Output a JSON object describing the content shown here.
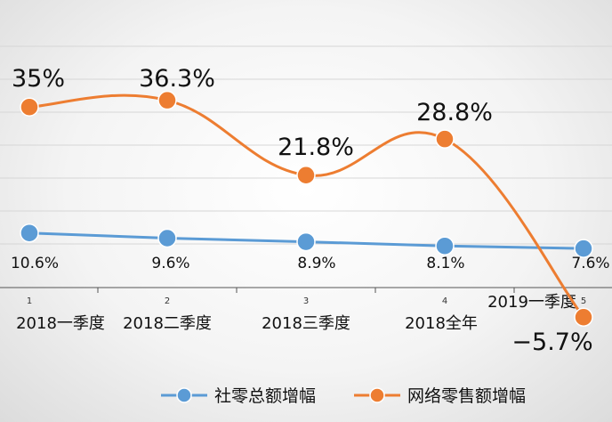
{
  "chart_data": {
    "type": "line",
    "x_ticks": [
      "1",
      "2",
      "3",
      "4",
      "5"
    ],
    "categories": [
      "2018一季度",
      "2018二季度",
      "2018三季度",
      "2018全年",
      "2019一季度"
    ],
    "series": [
      {
        "name": "社零总额增幅",
        "color": "#5b9bd5",
        "values": [
          10.6,
          9.6,
          8.9,
          8.1,
          7.6
        ],
        "labels": [
          "10.6%",
          "9.6%",
          "8.9%",
          "8.1%",
          "7.6%"
        ]
      },
      {
        "name": "网络零售额增幅",
        "color": "#ed7d31",
        "values": [
          35,
          36.3,
          21.8,
          28.8,
          -5.7
        ],
        "labels": [
          "35%",
          "36.3%",
          "21.8%",
          "28.8%",
          "−5.7%"
        ]
      }
    ],
    "grid": true,
    "legend": "bottom"
  }
}
